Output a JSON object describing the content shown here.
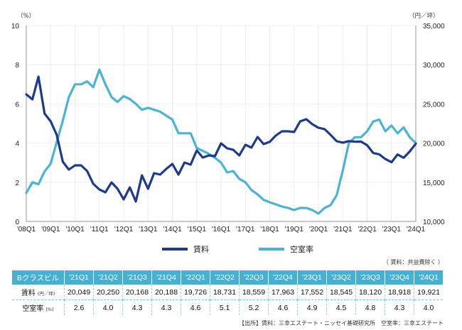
{
  "chart_data": {
    "type": "line",
    "title": "",
    "left_axis": {
      "unit_label": "（%）",
      "range": [
        0,
        10
      ],
      "ticks": [
        "0",
        "2",
        "4",
        "6",
        "8",
        "10"
      ]
    },
    "right_axis": {
      "unit_label": "（円／坪）",
      "range": [
        10000,
        35000
      ],
      "ticks": [
        "10,000",
        "15,000",
        "20,000",
        "25,000",
        "30,000",
        "35,000"
      ]
    },
    "x_tick_labels": [
      "'08Q1",
      "'09Q1",
      "'10Q1",
      "'11Q1",
      "'12Q1",
      "'13Q1",
      "'14Q1",
      "'15Q1",
      "'16Q1",
      "'17Q1",
      "'18Q1",
      "'19Q1",
      "'20Q1",
      "'21Q1",
      "'22Q1",
      "'23Q1",
      "'24Q1"
    ],
    "x_range": [
      "'08Q1",
      "'24Q1"
    ],
    "grid": true,
    "legend_position": "bottom",
    "series": [
      {
        "name": "賃料",
        "axis": "right",
        "color": "#1c3a8f",
        "values": [
          26210,
          25580,
          28480,
          23770,
          22770,
          21050,
          17610,
          16610,
          17160,
          17160,
          16430,
          14800,
          14080,
          13710,
          14980,
          14170,
          12810,
          14350,
          12540,
          15890,
          14170,
          16160,
          15980,
          16700,
          17340,
          15980,
          17520,
          17250,
          19060,
          18150,
          18420,
          18330,
          19960,
          19330,
          19150,
          18420,
          19780,
          19420,
          20780,
          19870,
          20150,
          20960,
          21500,
          21500,
          21410,
          22770,
          23040,
          22410,
          21960,
          21780,
          21050,
          20240,
          20049,
          20250,
          20168,
          20188,
          19726,
          18731,
          18559,
          17963,
          17552,
          18545,
          18120,
          18918,
          19921
        ]
      },
      {
        "name": "空室率",
        "axis": "left",
        "color": "#4ab3d6",
        "values": [
          1.45,
          2.0,
          1.9,
          2.55,
          2.95,
          4.05,
          5.15,
          6.35,
          7.0,
          7.0,
          7.15,
          6.85,
          7.75,
          7.0,
          6.35,
          6.1,
          6.4,
          6.25,
          6.0,
          5.7,
          5.8,
          5.7,
          5.6,
          5.4,
          5.2,
          4.5,
          4.5,
          4.5,
          3.75,
          3.6,
          3.45,
          3.25,
          3.0,
          2.5,
          2.57,
          2.17,
          2.0,
          1.6,
          1.38,
          1.1,
          0.98,
          0.87,
          0.76,
          0.69,
          0.58,
          0.69,
          0.69,
          0.58,
          0.4,
          0.69,
          0.83,
          1.34,
          2.6,
          4.0,
          4.3,
          4.3,
          4.6,
          5.1,
          5.2,
          4.6,
          4.9,
          4.5,
          4.8,
          4.3,
          4.0
        ]
      }
    ]
  },
  "legend": {
    "rent_label": "賃料",
    "vacancy_label": "空室率"
  },
  "colors": {
    "rent": "#1c3a8f",
    "vacancy": "#4ab3d6",
    "table_header": "#45b0d4"
  },
  "note": "（ 賃料：共益費除く ）",
  "table": {
    "corner": "Bクラスビル",
    "quarters": [
      "'21Q1",
      "'21Q2",
      "'21Q3",
      "'21Q4",
      "'22Q1",
      "'22Q2",
      "'22Q3",
      "'22Q4",
      "'23Q1",
      "'23Q2",
      "'23Q3",
      "'23Q4",
      "'24Q1"
    ],
    "rent_label": "賃料",
    "rent_unit": "(円／坪)",
    "rent": [
      "20,049",
      "20,250",
      "20,168",
      "20,188",
      "19,726",
      "18,731",
      "18,559",
      "17,963",
      "17,552",
      "18,545",
      "18,120",
      "18,918",
      "19,921"
    ],
    "vacancy_label": "空室率",
    "vacancy_unit": "(%)",
    "vacancy": [
      "2.6",
      "4.0",
      "4.3",
      "4.3",
      "4.6",
      "5.1",
      "5.2",
      "4.6",
      "4.9",
      "4.5",
      "4.8",
      "4.3",
      "4.0"
    ]
  },
  "source": "【出所】賃料：三幸エステート・ニッセイ基礎研究所　空室率：三幸エステート"
}
